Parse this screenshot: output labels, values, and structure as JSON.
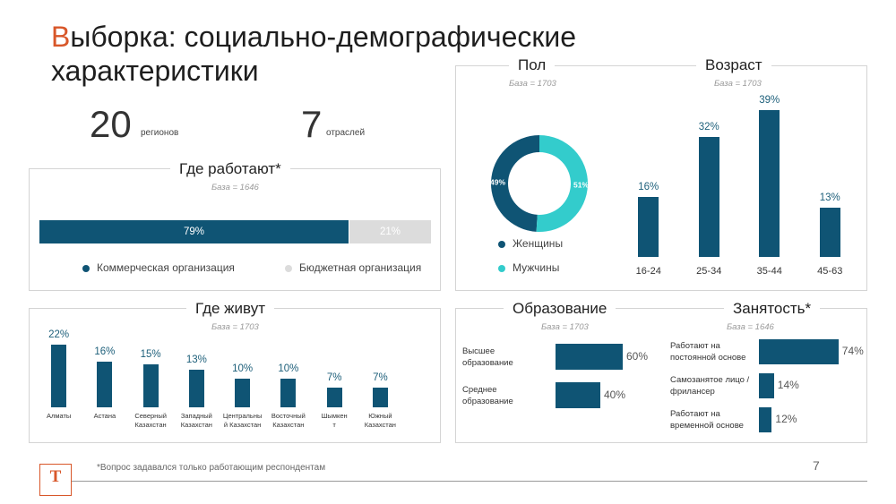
{
  "slide": {
    "title_first": "В",
    "title_rest": "ыборка: социально-демографические характеристики",
    "regions_num": "20",
    "regions_lbl": "регионов",
    "sectors_num": "7",
    "sectors_lbl": "отраслей",
    "footnote": "*Вопрос задавался только работающим респондентам",
    "page": "7",
    "logo": "T"
  },
  "colors": {
    "primary": "#0f5474",
    "teal": "#33cccc",
    "grey": "#dcdcdc",
    "accent": "#d8572a"
  },
  "chart_data": [
    {
      "id": "work",
      "type": "bar",
      "stacked": true,
      "orientation": "horizontal",
      "title": "Где работают*",
      "base": "База = 1646",
      "series": [
        {
          "name": "Коммерческая организация",
          "value": 79,
          "label": "79%"
        },
        {
          "name": "Бюджетная организация",
          "value": 21,
          "label": "21%"
        }
      ]
    },
    {
      "id": "gender",
      "type": "pie",
      "donut": true,
      "title": "Пол",
      "base": "База = 1703",
      "slices": [
        {
          "name": "Женщины",
          "value": 49,
          "label": "49%"
        },
        {
          "name": "Мужчины",
          "value": 51,
          "label": "51%"
        }
      ]
    },
    {
      "id": "age",
      "type": "bar",
      "title": "Возраст",
      "base": "База = 1703",
      "categories": [
        "16-24",
        "25-34",
        "35-44",
        "45-63"
      ],
      "values": [
        16,
        32,
        39,
        13
      ],
      "labels": [
        "16%",
        "32%",
        "39%",
        "13%"
      ]
    },
    {
      "id": "live",
      "type": "bar",
      "title": "Где живут",
      "base": "База = 1703",
      "categories": [
        [
          "Алматы"
        ],
        [
          "Астана"
        ],
        [
          "Северный",
          "Казахстан"
        ],
        [
          "Западный",
          "Казахстан"
        ],
        [
          "Центральны",
          "й Казахстан"
        ],
        [
          "Восточный",
          "Казахстан"
        ],
        [
          "Шымкен",
          "т"
        ],
        [
          "Южный",
          "Казахстан"
        ]
      ],
      "values": [
        22,
        16,
        15,
        13,
        10,
        10,
        7,
        7
      ],
      "labels": [
        "22%",
        "16%",
        "15%",
        "13%",
        "10%",
        "10%",
        "7%",
        "7%"
      ]
    },
    {
      "id": "edu",
      "type": "bar",
      "orientation": "horizontal",
      "title": "Образование",
      "base": "База = 1703",
      "categories": [
        [
          "Высшее",
          "образование"
        ],
        [
          "Среднее",
          "образование"
        ]
      ],
      "values": [
        60,
        40
      ],
      "labels": [
        "60%",
        "40%"
      ]
    },
    {
      "id": "emp",
      "type": "bar",
      "orientation": "horizontal",
      "title": "Занятость*",
      "base": "База = 1646",
      "categories": [
        [
          "Работают на",
          "постоянной основе"
        ],
        [
          "Самозанятое лицо /",
          "фрилансер"
        ],
        [
          "Работают на",
          "временной основе"
        ]
      ],
      "values": [
        74,
        14,
        12
      ],
      "labels": [
        "74%",
        "14%",
        "12%"
      ]
    }
  ]
}
